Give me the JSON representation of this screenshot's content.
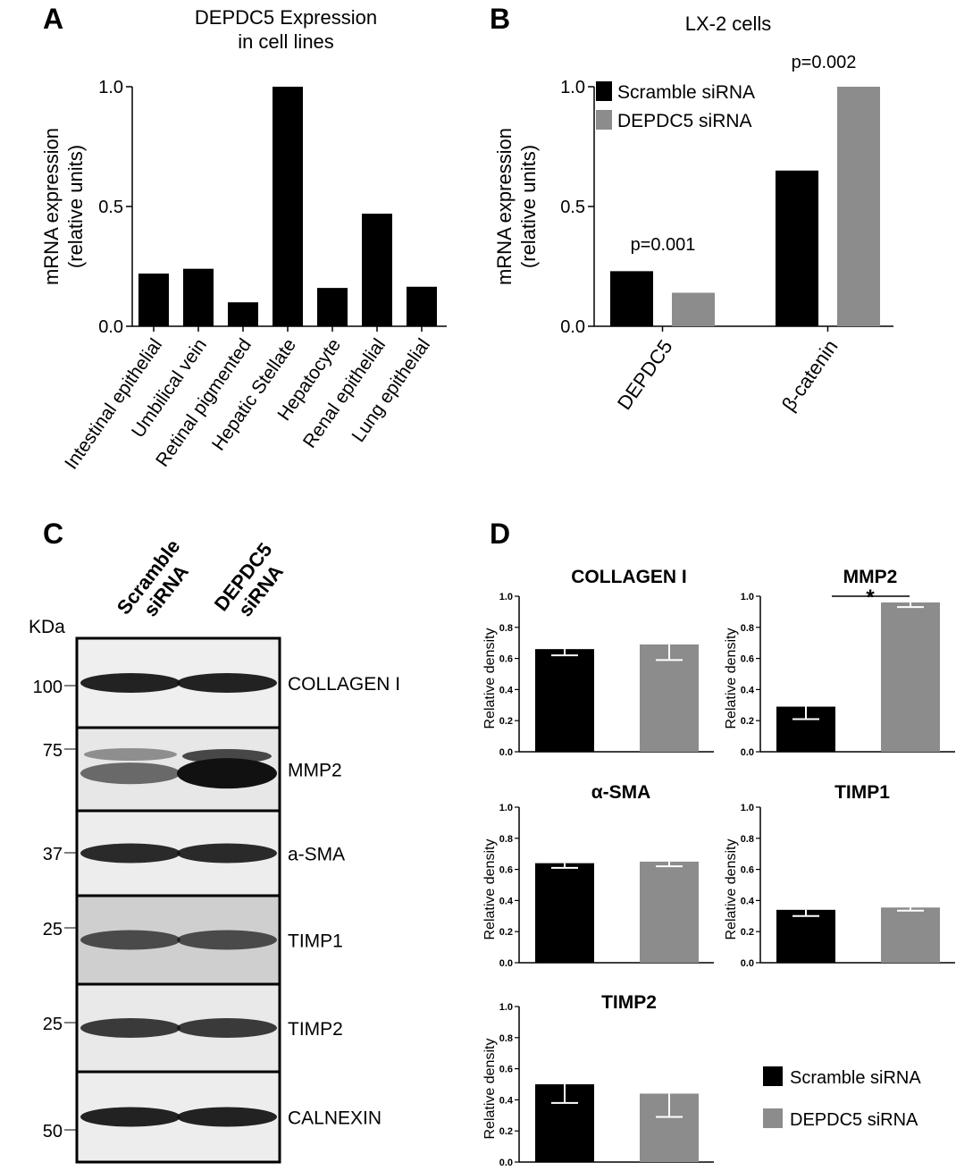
{
  "panels": {
    "A": {
      "letter": "A"
    },
    "B": {
      "letter": "B"
    },
    "C": {
      "letter": "C"
    },
    "D": {
      "letter": "D"
    }
  },
  "colors": {
    "scramble": "#000000",
    "depdc5": "#8c8c8c",
    "error_bar": "#ffffff"
  },
  "chart_data": [
    {
      "panel": "A",
      "type": "bar",
      "title": "DEPDC5 Expression\nin cell lines",
      "ylabel": "mRNA expression\n(relative units)",
      "xlabel": "",
      "ylim": [
        0,
        1.0
      ],
      "yticks": [
        "0.0",
        "0.5",
        "1.0"
      ],
      "categories": [
        "Intestinal epithelial",
        "Umbilical vein",
        "Retinal pigmented",
        "Hepatic Stellate",
        "Hepatocyte",
        "Renal epithelial",
        "Lung epithelial"
      ],
      "values": [
        0.22,
        0.24,
        0.1,
        1.0,
        0.16,
        0.47,
        0.165
      ]
    },
    {
      "panel": "B",
      "type": "bar",
      "title": "LX-2 cells",
      "ylabel": "mRNA expression\n(relative units)",
      "xlabel": "",
      "ylim": [
        0,
        1.0
      ],
      "yticks": [
        "0.0",
        "0.5",
        "1.0"
      ],
      "categories": [
        "DEPDC5",
        "β-catenin"
      ],
      "series": [
        {
          "name": "Scramble siRNA",
          "values": [
            0.23,
            0.65
          ]
        },
        {
          "name": "DEPDC5 siRNA",
          "values": [
            0.14,
            1.0
          ]
        }
      ],
      "annotations": [
        "p=0.001",
        "p=0.002"
      ],
      "legend": "top-left"
    },
    {
      "panel": "C",
      "type": "western-blot",
      "lanes": [
        "Scramble\nsiRNA",
        "DEPDC5\nsiRNA"
      ],
      "unit_label": "KDa",
      "markers": [
        "100",
        "75",
        "37",
        "25",
        "25",
        "50"
      ],
      "bands": [
        "COLLAGEN I",
        "MMP2",
        "a-SMA",
        "TIMP1",
        "TIMP2",
        "CALNEXIN"
      ],
      "band_intensity": [
        [
          0.9,
          0.9
        ],
        [
          0.45,
          1.0
        ],
        [
          0.85,
          0.85
        ],
        [
          0.6,
          0.6
        ],
        [
          0.75,
          0.75
        ],
        [
          0.9,
          0.9
        ]
      ]
    },
    {
      "panel": "D",
      "type": "bar",
      "title": "COLLAGEN I",
      "ylabel": "Relative density",
      "ylim": [
        0,
        1.0
      ],
      "yticks": [
        "0.0",
        "0.2",
        "0.4",
        "0.6",
        "0.8",
        "1.0"
      ],
      "series": [
        {
          "name": "Scramble siRNA",
          "values": [
            0.66
          ],
          "error": [
            0.04
          ]
        },
        {
          "name": "DEPDC5 siRNA",
          "values": [
            0.69
          ],
          "error": [
            0.1
          ]
        }
      ]
    },
    {
      "panel": "D",
      "type": "bar",
      "title": "MMP2",
      "ylabel": "Relative density",
      "ylim": [
        0,
        1.0
      ],
      "yticks": [
        "0.0",
        "0.2",
        "0.4",
        "0.6",
        "0.8",
        "1.0"
      ],
      "series": [
        {
          "name": "Scramble siRNA",
          "values": [
            0.29
          ],
          "error": [
            0.08
          ]
        },
        {
          "name": "DEPDC5 siRNA",
          "values": [
            0.96
          ],
          "error": [
            0.03
          ]
        }
      ],
      "significance": "*"
    },
    {
      "panel": "D",
      "type": "bar",
      "title": "α-SMA",
      "ylabel": "Relative density",
      "ylim": [
        0,
        1.0
      ],
      "yticks": [
        "0.0",
        "0.2",
        "0.4",
        "0.6",
        "0.8",
        "1.0"
      ],
      "series": [
        {
          "name": "Scramble siRNA",
          "values": [
            0.64
          ],
          "error": [
            0.03
          ]
        },
        {
          "name": "DEPDC5 siRNA",
          "values": [
            0.65
          ],
          "error": [
            0.03
          ]
        }
      ]
    },
    {
      "panel": "D",
      "type": "bar",
      "title": "TIMP1",
      "ylabel": "Relative density",
      "ylim": [
        0,
        1.0
      ],
      "yticks": [
        "0.0",
        "0.2",
        "0.4",
        "0.6",
        "0.8",
        "1.0"
      ],
      "series": [
        {
          "name": "Scramble siRNA",
          "values": [
            0.34
          ],
          "error": [
            0.04
          ]
        },
        {
          "name": "DEPDC5 siRNA",
          "values": [
            0.355
          ],
          "error": [
            0.02
          ]
        }
      ]
    },
    {
      "panel": "D",
      "type": "bar",
      "title": "TIMP2",
      "ylabel": "Relative density",
      "ylim": [
        0,
        1.0
      ],
      "yticks": [
        "0.0",
        "0.2",
        "0.4",
        "0.6",
        "0.8",
        "1.0"
      ],
      "series": [
        {
          "name": "Scramble siRNA",
          "values": [
            0.5
          ],
          "error": [
            0.12
          ]
        },
        {
          "name": "DEPDC5 siRNA",
          "values": [
            0.44
          ],
          "error": [
            0.15
          ]
        }
      ]
    }
  ],
  "legend_D": [
    "Scramble siRNA",
    "DEPDC5 siRNA"
  ]
}
